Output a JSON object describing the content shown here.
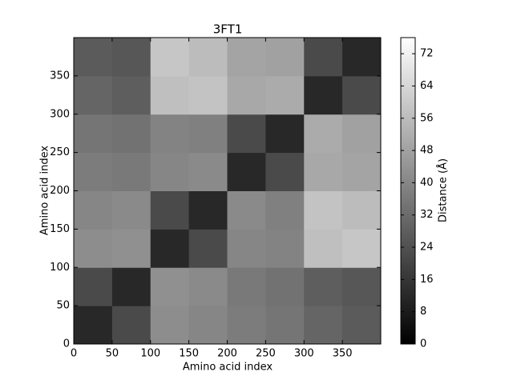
{
  "chart_data": {
    "type": "heatmap",
    "title": "3FT1",
    "xlabel": "Amino acid index",
    "ylabel": "Amino acid index",
    "colorbar_label": "Distance (Å)",
    "xbins": [
      0,
      50,
      100,
      150,
      200,
      250,
      300,
      350,
      400
    ],
    "ybins": [
      0,
      50,
      100,
      150,
      200,
      250,
      300,
      350,
      400
    ],
    "values": [
      [
        12,
        22,
        42,
        40,
        37,
        35,
        30,
        27
      ],
      [
        22,
        12,
        43,
        41,
        36,
        34,
        28,
        26
      ],
      [
        42,
        43,
        12,
        22,
        40,
        39,
        57,
        59
      ],
      [
        40,
        41,
        22,
        12,
        41,
        38,
        58,
        56
      ],
      [
        37,
        36,
        40,
        41,
        12,
        22,
        50,
        49
      ],
      [
        35,
        34,
        39,
        38,
        22,
        12,
        51,
        48
      ],
      [
        30,
        28,
        57,
        58,
        50,
        51,
        12,
        22
      ],
      [
        27,
        26,
        59,
        56,
        49,
        48,
        22,
        12
      ]
    ],
    "xlim": [
      0,
      400
    ],
    "ylim": [
      0,
      400
    ],
    "xticks": [
      0,
      50,
      100,
      150,
      200,
      250,
      300,
      350
    ],
    "yticks": [
      0,
      50,
      100,
      150,
      200,
      250,
      300,
      350
    ],
    "zlim": [
      0,
      76
    ],
    "zticks": [
      0,
      8,
      16,
      24,
      32,
      40,
      48,
      56,
      64,
      72
    ],
    "colormap": "gray"
  }
}
